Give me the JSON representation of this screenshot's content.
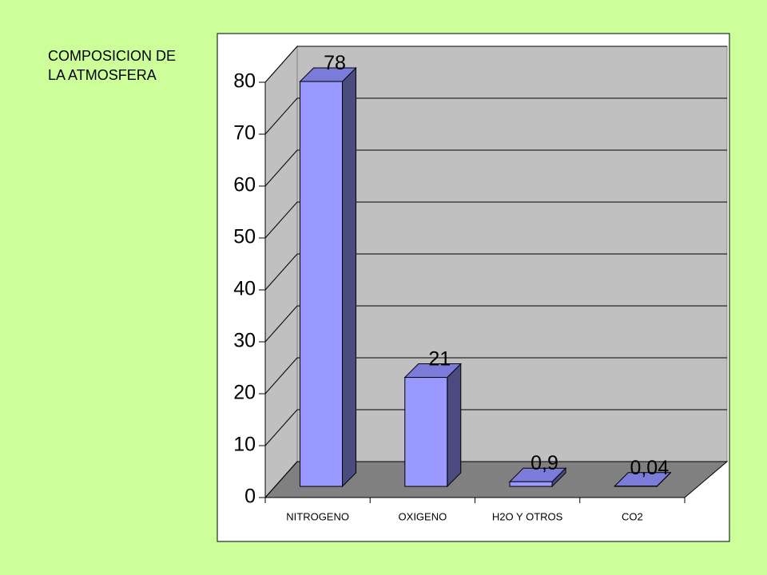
{
  "chart_data": {
    "type": "bar3d",
    "title": "COMPOSICION DE LA ATMOSFERA",
    "categories": [
      "NITROGENO",
      "OXIGENO",
      "H2O Y OTROS",
      "CO2"
    ],
    "values": [
      78,
      21,
      0.9,
      0.04
    ],
    "value_labels": [
      "78",
      "21",
      "0,9",
      "0,04"
    ],
    "color": "#9999ff",
    "ylim": [
      0,
      80
    ],
    "yticks": [
      0,
      10,
      20,
      30,
      40,
      50,
      60,
      70,
      80
    ],
    "grid": true
  }
}
